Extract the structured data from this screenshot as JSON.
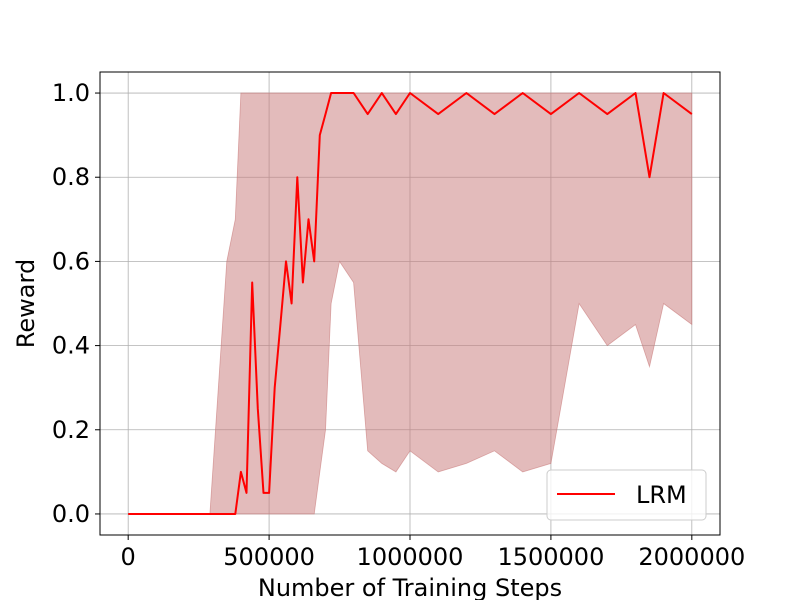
{
  "chart_data": {
    "type": "line",
    "title": "",
    "xlabel": "Number of Training Steps",
    "ylabel": "Reward",
    "xlim": [
      -100000,
      2100000
    ],
    "ylim": [
      -0.05,
      1.05
    ],
    "xticks": [
      0,
      500000,
      1000000,
      1500000,
      2000000
    ],
    "xtick_labels": [
      "0",
      "500000",
      "1000000",
      "1500000",
      "2000000"
    ],
    "yticks": [
      0.0,
      0.2,
      0.4,
      0.6,
      0.8,
      1.0
    ],
    "ytick_labels": [
      "0.0",
      "0.2",
      "0.4",
      "0.6",
      "0.8",
      "1.0"
    ],
    "grid": true,
    "legend_position": "lower-right",
    "series": [
      {
        "name": "LRM",
        "color": "#ff0000",
        "band_color": "#c87878",
        "x": [
          0,
          290000,
          350000,
          380000,
          400000,
          420000,
          440000,
          460000,
          480000,
          500000,
          520000,
          540000,
          560000,
          580000,
          600000,
          620000,
          640000,
          660000,
          680000,
          700000,
          720000,
          750000,
          800000,
          850000,
          900000,
          950000,
          1000000,
          1100000,
          1200000,
          1300000,
          1400000,
          1500000,
          1600000,
          1700000,
          1800000,
          1850000,
          1900000,
          2000000
        ],
        "y": [
          0.0,
          0.0,
          0.0,
          0.0,
          0.1,
          0.05,
          0.55,
          0.25,
          0.05,
          0.05,
          0.3,
          0.45,
          0.6,
          0.5,
          0.8,
          0.55,
          0.7,
          0.6,
          0.9,
          0.95,
          1.0,
          1.0,
          1.0,
          0.95,
          1.0,
          0.95,
          1.0,
          0.95,
          1.0,
          0.95,
          1.0,
          0.95,
          1.0,
          0.95,
          1.0,
          0.8,
          1.0,
          0.95
        ],
        "lower": [
          0.0,
          0.0,
          0.0,
          0.0,
          0.0,
          0.0,
          0.0,
          0.0,
          0.0,
          0.0,
          0.0,
          0.0,
          0.0,
          0.0,
          0.0,
          0.0,
          0.0,
          0.0,
          0.1,
          0.2,
          0.5,
          0.6,
          0.55,
          0.15,
          0.12,
          0.1,
          0.15,
          0.1,
          0.12,
          0.15,
          0.1,
          0.12,
          0.5,
          0.4,
          0.45,
          0.35,
          0.5,
          0.45
        ],
        "upper": [
          0.0,
          0.0,
          0.6,
          0.7,
          1.0,
          1.0,
          1.0,
          1.0,
          1.0,
          1.0,
          1.0,
          1.0,
          1.0,
          1.0,
          1.0,
          1.0,
          1.0,
          1.0,
          1.0,
          1.0,
          1.0,
          1.0,
          1.0,
          1.0,
          1.0,
          1.0,
          1.0,
          1.0,
          1.0,
          1.0,
          1.0,
          1.0,
          1.0,
          1.0,
          1.0,
          1.0,
          1.0,
          1.0
        ]
      }
    ]
  }
}
